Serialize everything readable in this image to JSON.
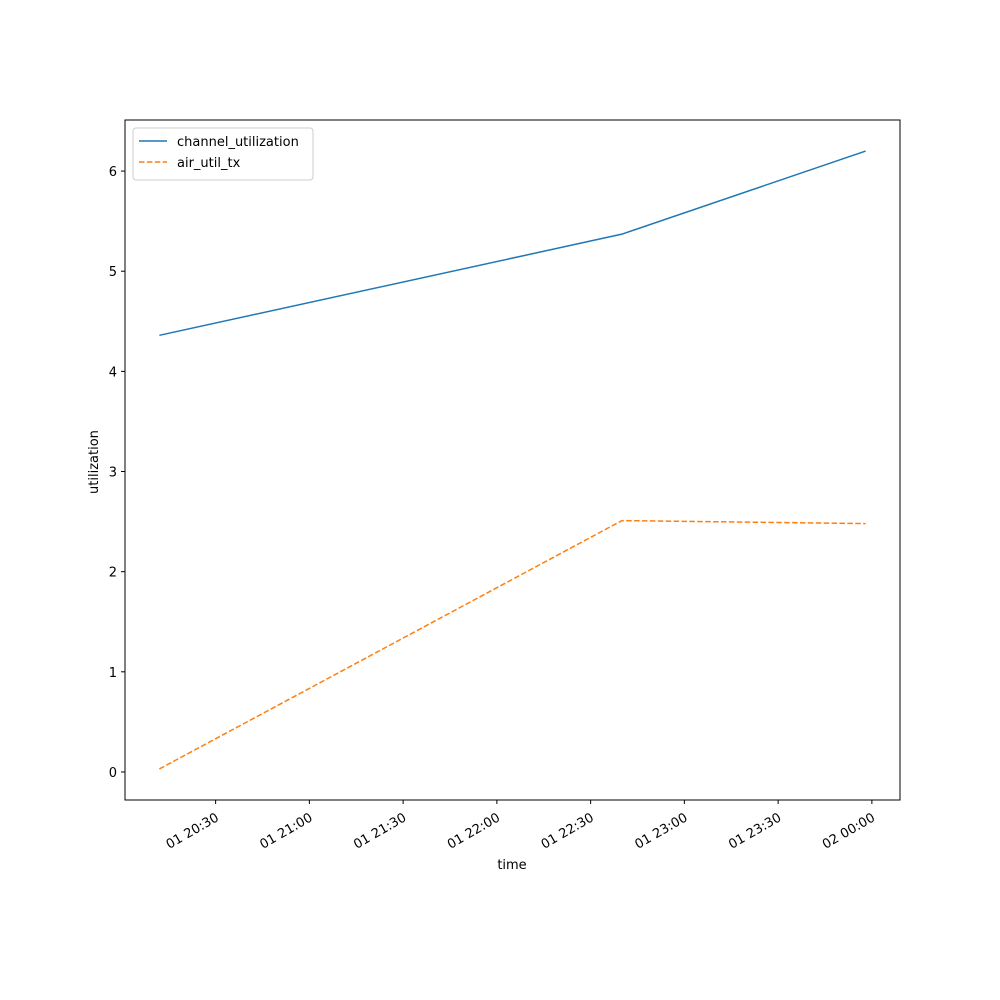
{
  "chart_data": {
    "type": "line",
    "x_label": "time",
    "y_label": "utilization",
    "x": [
      "01 20:12",
      "01 22:40",
      "01 23:58"
    ],
    "series": [
      {
        "name": "channel_utilization",
        "color": "#1f77b4",
        "linestyle": "solid",
        "values": [
          4.36,
          5.37,
          6.2
        ]
      },
      {
        "name": "air_util_tx",
        "color": "#ff7f0e",
        "linestyle": "dashed",
        "values": [
          0.03,
          2.51,
          2.48
        ]
      }
    ],
    "xlim": [
      "01 20:01",
      "02 00:09"
    ],
    "xticks": [
      "01 20:30",
      "01 21:00",
      "01 21:30",
      "01 22:00",
      "01 22:30",
      "01 23:00",
      "01 23:30",
      "02 00:00"
    ],
    "ylim": [
      -0.28,
      6.51
    ],
    "yticks": [
      0,
      1,
      2,
      3,
      4,
      5,
      6
    ],
    "legend": "upper left",
    "grid": false
  }
}
